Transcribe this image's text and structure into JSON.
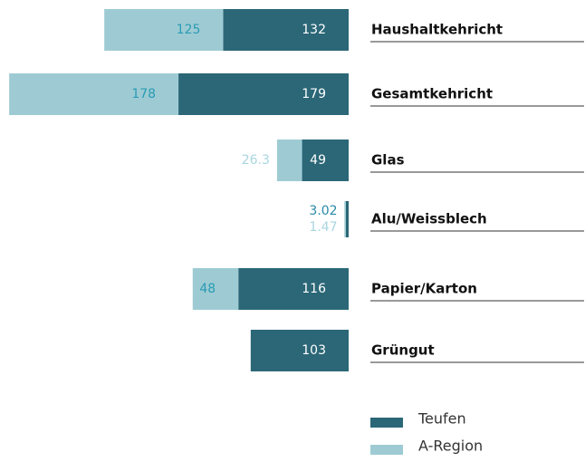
{
  "chart_data": {
    "type": "stacked-barh",
    "categories": [
      "Haushaltkehricht",
      "Gesamtkehricht",
      "Glas",
      "Alu/Weissblech",
      "Papier/Karton",
      "Grüngut"
    ],
    "series": [
      {
        "name": "Teufen",
        "color": "#2b6777",
        "values": [
          132,
          179,
          49,
          3.02,
          116,
          103
        ]
      },
      {
        "name": "A-Region",
        "color": "#9ecbd3",
        "values": [
          125,
          178,
          26.3,
          1.47,
          48,
          null
        ]
      }
    ]
  }
}
